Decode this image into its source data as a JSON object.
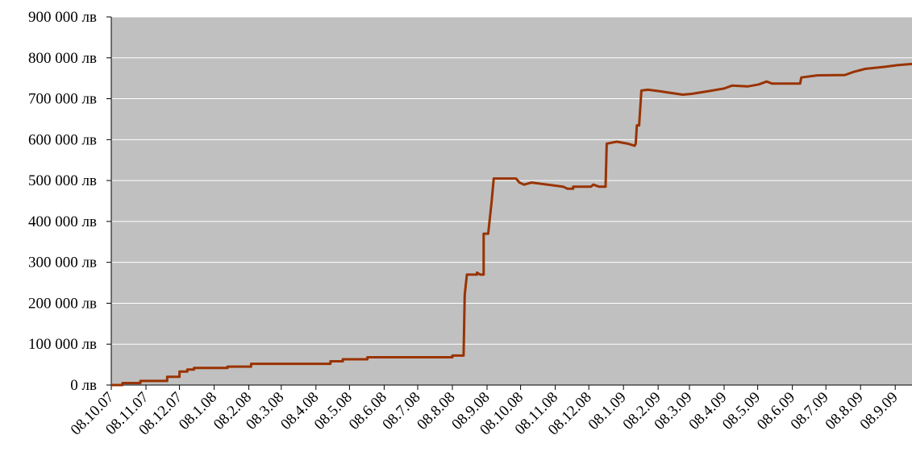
{
  "chart_data": {
    "type": "line",
    "x": [
      "08.10.07",
      "18.10.07",
      "18.10.07",
      "03.11.07",
      "03.11.07",
      "27.11.07",
      "27.11.07",
      "08.12.07",
      "08.12.07",
      "15.12.07",
      "15.12.07",
      "21.12.07",
      "21.12.07",
      "20.1.08",
      "20.1.08",
      "10.2.08",
      "10.2.08",
      "21.4.08",
      "21.4.08",
      "02.5.08",
      "02.5.08",
      "24.5.08",
      "24.5.08",
      "08.8.08",
      "08.8.08",
      "18.8.08",
      "19.8.08",
      "21.8.08",
      "30.8.08",
      "30.8.08",
      "02.9.08",
      "05.9.08",
      "05.9.08",
      "09.9.08",
      "12.9.08",
      "14.9.08",
      "04.10.08",
      "07.10.08",
      "11.10.08",
      "18.10.08",
      "01.11.08",
      "15.11.08",
      "19.11.08",
      "24.11.08",
      "24.11.08",
      "10.12.08",
      "12.12.08",
      "17.12.08",
      "23.12.08",
      "24.12.08",
      "02.1.09",
      "12.1.09",
      "18.1.09",
      "19.1.09",
      "20.1.09",
      "22.1.09",
      "24.1.09",
      "30.1.09",
      "10.2.09",
      "17.2.09",
      "02.3.09",
      "10.3.09",
      "24.3.09",
      "08.4.09",
      "15.4.09",
      "29.4.09",
      "09.5.09",
      "16.5.09",
      "21.5.09",
      "15.6.09",
      "16.6.09",
      "30.6.09",
      "25.7.09",
      "01.8.09",
      "12.8.09",
      "30.8.09",
      "10.9.09",
      "23.9.09"
    ],
    "series": [
      {
        "color": "#993300",
        "values": [
          0,
          0,
          5000,
          5000,
          10000,
          10000,
          20000,
          20000,
          33000,
          33000,
          38000,
          38000,
          42000,
          42000,
          45000,
          45000,
          52000,
          52000,
          58000,
          58000,
          63000,
          63000,
          68000,
          68000,
          72000,
          72000,
          220000,
          270000,
          270000,
          275000,
          270000,
          270000,
          370000,
          370000,
          445000,
          505000,
          505000,
          495000,
          490000,
          495000,
          490000,
          485000,
          480000,
          480000,
          485000,
          485000,
          490000,
          485000,
          485000,
          590000,
          595000,
          590000,
          585000,
          590000,
          635000,
          635000,
          720000,
          722000,
          718000,
          715000,
          710000,
          712000,
          718000,
          725000,
          732000,
          730000,
          735000,
          742000,
          737000,
          737000,
          752000,
          757000,
          758000,
          765000,
          773000,
          778000,
          782000,
          785000
        ]
      }
    ],
    "xlim": [
      "08.10.07",
      "23.9.09"
    ],
    "xticks": [
      "08.10.07",
      "08.11.07",
      "08.12.07",
      "08.1.08",
      "08.2.08",
      "08.3.08",
      "08.4.08",
      "08.5.08",
      "08.6.08",
      "08.7.08",
      "08.8.08",
      "08.9.08",
      "08.10.08",
      "08.11.08",
      "08.12.08",
      "08.1.09",
      "08.2.09",
      "08.3.09",
      "08.4.09",
      "08.5.09",
      "08.6.09",
      "08.7.09",
      "08.8.09",
      "08.9.09"
    ],
    "ylim": [
      0,
      900000
    ],
    "yticks": [
      {
        "value": 0,
        "label": "0 лв"
      },
      {
        "value": 100000,
        "label": "100 000 лв"
      },
      {
        "value": 200000,
        "label": "200 000 лв"
      },
      {
        "value": 300000,
        "label": "300 000 лв"
      },
      {
        "value": 400000,
        "label": "400 000 лв"
      },
      {
        "value": 500000,
        "label": "500 000 лв"
      },
      {
        "value": 600000,
        "label": "600 000 лв"
      },
      {
        "value": 700000,
        "label": "700 000 лв"
      },
      {
        "value": 800000,
        "label": "800 000 лв"
      },
      {
        "value": 900000,
        "label": "900 000 лв"
      }
    ],
    "grid": true,
    "background": "#c0c0c0"
  }
}
